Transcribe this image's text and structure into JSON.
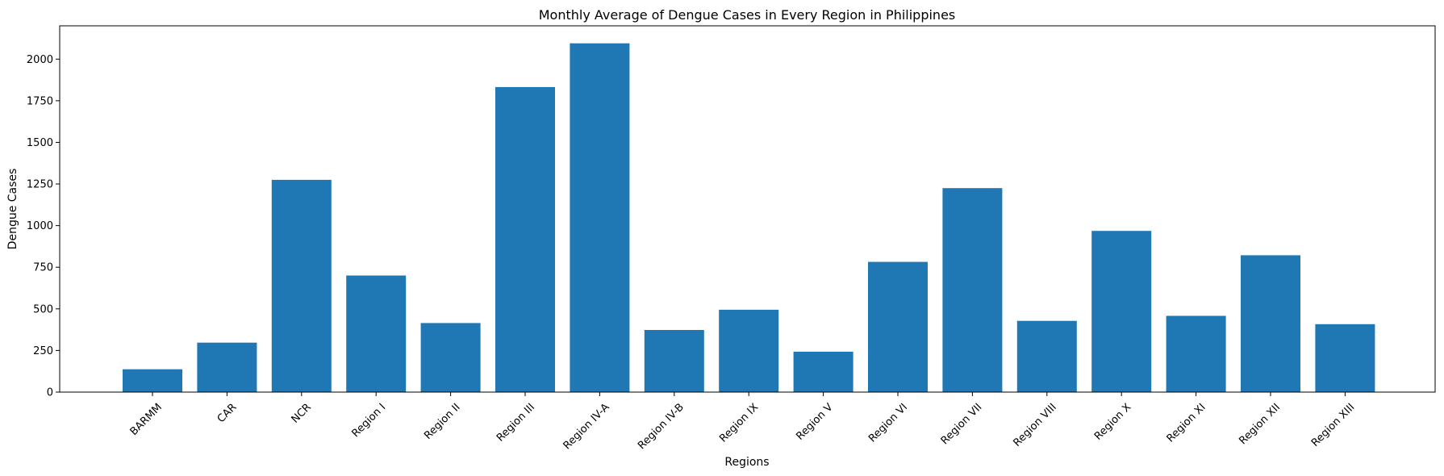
{
  "chart_data": {
    "type": "bar",
    "title": "Monthly Average of Dengue Cases in Every Region in Philippines",
    "xlabel": "Regions",
    "ylabel": "Dengue Cases",
    "categories": [
      "BARMM",
      "CAR",
      "NCR",
      "Region I",
      "Region II",
      "Region III",
      "Region IV-A",
      "Region IV-B",
      "Region IX",
      "Region V",
      "Region VI",
      "Region VII",
      "Region VIII",
      "Region X",
      "Region XI",
      "Region XII",
      "Region XIII"
    ],
    "values": [
      137,
      297,
      1275,
      700,
      415,
      1832,
      2095,
      373,
      495,
      243,
      782,
      1225,
      428,
      968,
      458,
      822,
      408
    ],
    "ylim": [
      0,
      2200
    ],
    "yticks": [
      0,
      250,
      500,
      750,
      1000,
      1250,
      1500,
      1750,
      2000
    ],
    "bar_color": "#1f77b4",
    "grid": false,
    "legend": "none"
  }
}
